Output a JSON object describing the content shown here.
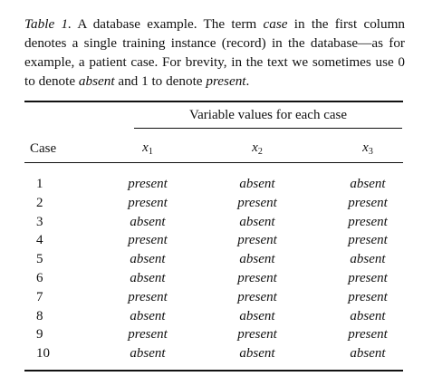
{
  "caption": {
    "label": "Table 1.",
    "part1": "A database example. The term",
    "term_case": "case",
    "part2": "in the first column denotes a single training instance (record) in the database—as for example, a patient case. For brevity, in the text we sometimes use 0 to denote",
    "term_absent": "absent",
    "part3": "and 1 to denote",
    "term_present": "present",
    "end": "."
  },
  "table": {
    "span_header": "Variable values for each case",
    "case_header": "Case",
    "variables": [
      {
        "symbol": "x",
        "subscript": "1"
      },
      {
        "symbol": "x",
        "subscript": "2"
      },
      {
        "symbol": "x",
        "subscript": "3"
      }
    ],
    "rows": [
      {
        "case": "1",
        "values": [
          "present",
          "absent",
          "absent"
        ]
      },
      {
        "case": "2",
        "values": [
          "present",
          "present",
          "present"
        ]
      },
      {
        "case": "3",
        "values": [
          "absent",
          "absent",
          "present"
        ]
      },
      {
        "case": "4",
        "values": [
          "present",
          "present",
          "present"
        ]
      },
      {
        "case": "5",
        "values": [
          "absent",
          "absent",
          "absent"
        ]
      },
      {
        "case": "6",
        "values": [
          "absent",
          "present",
          "present"
        ]
      },
      {
        "case": "7",
        "values": [
          "present",
          "present",
          "present"
        ]
      },
      {
        "case": "8",
        "values": [
          "absent",
          "absent",
          "absent"
        ]
      },
      {
        "case": "9",
        "values": [
          "present",
          "present",
          "present"
        ]
      },
      {
        "case": "10",
        "values": [
          "absent",
          "absent",
          "absent"
        ]
      }
    ]
  }
}
